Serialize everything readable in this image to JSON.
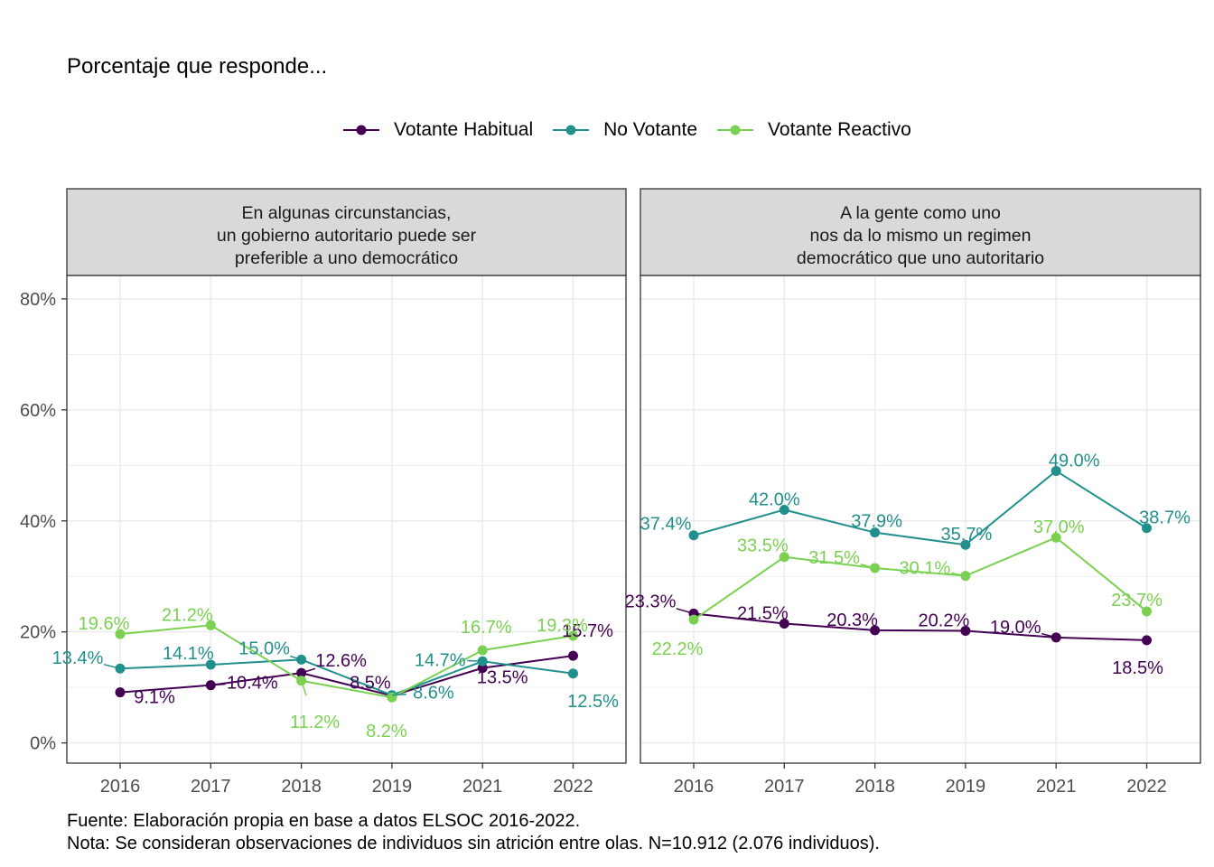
{
  "title": "Porcentaje que responde...",
  "colors": {
    "Votante Habitual": "#440154",
    "No Votante": "#21908c",
    "Votante Reactivo": "#7ad151",
    "strip_bg": "#d9d9d9",
    "grid": "#ebebeb"
  },
  "footer": {
    "source": "Fuente: Elaboración propia en base a datos ELSOC 2016-2022.",
    "note": "Nota: Se consideran observaciones de individuos sin atrición entre olas. N=10.912 (2.076 individuos)."
  },
  "chart_data": {
    "type": "line",
    "title": "Porcentaje que responde...",
    "legend": [
      "Votante Habitual",
      "No Votante",
      "Votante Reactivo"
    ],
    "legend_position": "top",
    "x": [
      "2016",
      "2017",
      "2018",
      "2019",
      "2021",
      "2022"
    ],
    "y_ticks": [
      "0%",
      "20%",
      "40%",
      "60%",
      "80%"
    ],
    "ylim": [
      -0.035,
      0.8
    ],
    "grid": true,
    "panels": [
      {
        "strip": [
          "En algunas circunstancias,",
          "un gobierno autoritario puede ser",
          "preferible a uno democrático"
        ],
        "series": [
          {
            "name": "Votante Habitual",
            "values": [
              0.091,
              0.104,
              0.126,
              0.085,
              0.135,
              0.157
            ],
            "labels": [
              "9.1%",
              "10.4%",
              "12.6%",
              "8.5%",
              "13.5%",
              "15.7%"
            ]
          },
          {
            "name": "No Votante",
            "values": [
              0.134,
              0.141,
              0.15,
              0.086,
              0.147,
              0.125
            ],
            "labels": [
              "13.4%",
              "14.1%",
              "15.0%",
              "8.6%",
              "14.7%",
              "12.5%"
            ]
          },
          {
            "name": "Votante Reactivo",
            "values": [
              0.196,
              0.212,
              0.112,
              0.082,
              0.167,
              0.193
            ],
            "labels": [
              "19.6%",
              "21.2%",
              "11.2%",
              "8.2%",
              "16.7%",
              "19.3%"
            ]
          }
        ]
      },
      {
        "strip": [
          "A la gente como uno",
          "nos da lo mismo un regimen",
          "democrático que uno autoritario"
        ],
        "series": [
          {
            "name": "Votante Habitual",
            "values": [
              0.233,
              0.215,
              0.203,
              0.202,
              0.19,
              0.185
            ],
            "labels": [
              "23.3%",
              "21.5%",
              "20.3%",
              "20.2%",
              "19.0%",
              "18.5%"
            ]
          },
          {
            "name": "No Votante",
            "values": [
              0.374,
              0.42,
              0.379,
              0.357,
              0.49,
              0.387
            ],
            "labels": [
              "37.4%",
              "42.0%",
              "37.9%",
              "35.7%",
              "49.0%",
              "38.7%"
            ]
          },
          {
            "name": "Votante Reactivo",
            "values": [
              0.222,
              0.335,
              0.315,
              0.301,
              0.37,
              0.237
            ],
            "labels": [
              "22.2%",
              "33.5%",
              "31.5%",
              "30.1%",
              "37.0%",
              "23.7%"
            ]
          }
        ]
      }
    ]
  }
}
